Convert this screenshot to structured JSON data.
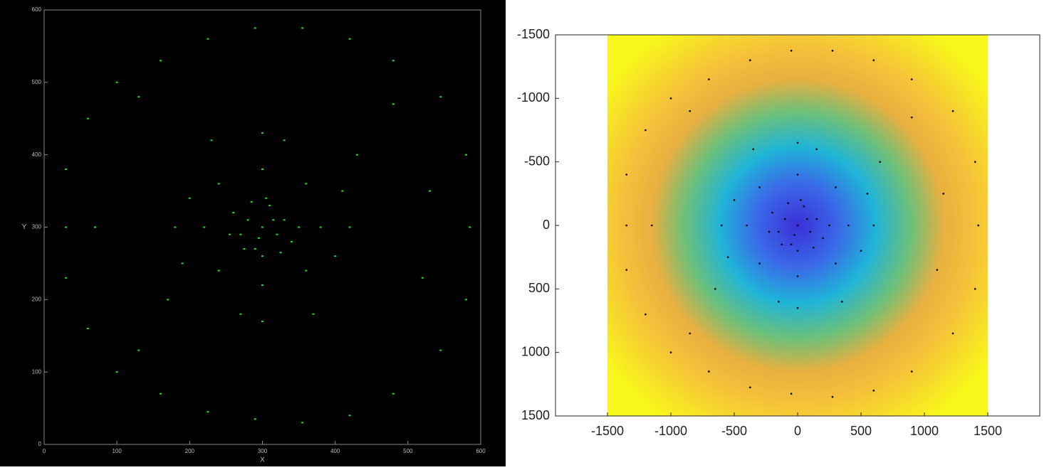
{
  "chart_data": [
    {
      "type": "scatter",
      "xlabel": "X",
      "ylabel": "Y",
      "color": "#22dd22",
      "background": "#000000",
      "xlim": [
        0,
        600
      ],
      "ylim": [
        0,
        600
      ],
      "xticks": [
        0,
        100,
        200,
        300,
        400,
        500,
        600
      ],
      "yticks": [
        0,
        100,
        200,
        300,
        400,
        500,
        600
      ],
      "x": [
        300,
        280,
        320,
        310,
        290,
        270,
        330,
        340,
        260,
        300,
        305,
        285,
        325,
        350,
        255,
        315,
        295,
        275,
        220,
        380,
        300,
        300,
        240,
        360,
        240,
        360,
        200,
        400,
        330,
        270,
        190,
        410,
        180,
        420,
        300,
        300,
        230,
        370,
        430,
        170,
        100,
        160,
        225,
        290,
        355,
        420,
        480,
        545,
        580,
        585,
        580,
        545,
        480,
        420,
        355,
        290,
        225,
        160,
        100,
        60,
        30,
        30,
        30,
        60,
        130,
        480,
        520,
        130,
        70,
        530
      ],
      "y": [
        300,
        310,
        290,
        330,
        270,
        290,
        310,
        280,
        320,
        260,
        340,
        335,
        265,
        300,
        290,
        310,
        285,
        270,
        300,
        300,
        380,
        220,
        360,
        360,
        240,
        240,
        340,
        260,
        420,
        180,
        250,
        350,
        300,
        300,
        430,
        170,
        420,
        180,
        400,
        200,
        500,
        530,
        560,
        575,
        575,
        560,
        530,
        480,
        400,
        300,
        200,
        130,
        70,
        40,
        30,
        35,
        45,
        70,
        100,
        160,
        230,
        300,
        380,
        450,
        480,
        470,
        230,
        130,
        300,
        350
      ]
    },
    {
      "type": "scatter",
      "color": "#000000",
      "y_inverted": true,
      "xlim": [
        -1910,
        1910
      ],
      "ylim": [
        -1500,
        1500
      ],
      "xticks": [
        -1500,
        -1000,
        -500,
        0,
        500,
        1000,
        1500
      ],
      "yticks": [
        -1500,
        -1000,
        -500,
        0,
        500,
        1000,
        1500
      ],
      "x": [
        0,
        -100,
        100,
        50,
        -50,
        -150,
        150,
        200,
        -200,
        0,
        25,
        -75,
        125,
        250,
        -225,
        75,
        -25,
        -125,
        -400,
        400,
        0,
        0,
        -300,
        300,
        -300,
        300,
        -500,
        500,
        150,
        -150,
        -550,
        550,
        -600,
        600,
        0,
        0,
        -350,
        350,
        650,
        -650,
        -1000,
        -700,
        -375,
        -50,
        275,
        600,
        900,
        1225,
        1400,
        1425,
        1400,
        1225,
        900,
        600,
        275,
        -50,
        -375,
        -700,
        -1000,
        -1200,
        -1350,
        -1350,
        -1350,
        -1200,
        -850,
        900,
        1100,
        -850,
        -1150,
        1150
      ],
      "y": [
        0,
        -50,
        50,
        -150,
        150,
        50,
        -50,
        100,
        -100,
        200,
        -200,
        -175,
        175,
        0,
        50,
        -50,
        75,
        150,
        0,
        0,
        -400,
        400,
        -300,
        -300,
        300,
        300,
        -200,
        200,
        -600,
        600,
        250,
        -250,
        0,
        0,
        -650,
        650,
        -600,
        600,
        -500,
        500,
        -1000,
        -1150,
        -1300,
        -1375,
        -1375,
        -1300,
        -1150,
        -900,
        -500,
        0,
        500,
        850,
        1150,
        1300,
        1350,
        1325,
        1275,
        1150,
        1000,
        700,
        350,
        0,
        -400,
        -750,
        -900,
        -850,
        350,
        850,
        0,
        -250
      ]
    }
  ]
}
